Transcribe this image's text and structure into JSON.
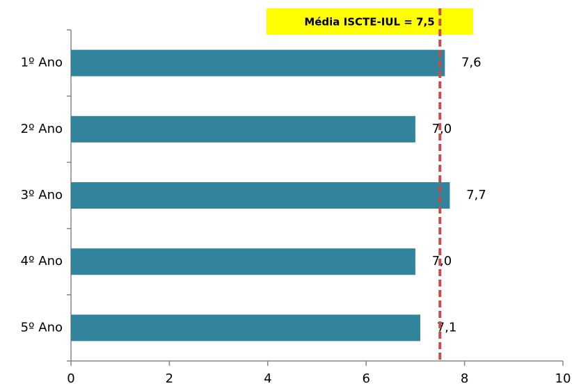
{
  "chart_data": {
    "type": "bar",
    "orientation": "horizontal",
    "categories": [
      "1º Ano",
      "2º Ano",
      "3º Ano",
      "4º Ano",
      "5º Ano"
    ],
    "values": [
      7.6,
      7.0,
      7.7,
      7.0,
      7.1
    ],
    "value_labels": [
      "7,6",
      "7,0",
      "7,7",
      "7,0",
      "7,1"
    ],
    "color": "#31849b",
    "xlim": [
      0,
      10
    ],
    "xticks": [
      0,
      2,
      4,
      6,
      8,
      10
    ],
    "reference_line": {
      "value": 7.5,
      "label": "Média ISCTE-IUL = 7,5",
      "color": "#c0504d"
    }
  }
}
